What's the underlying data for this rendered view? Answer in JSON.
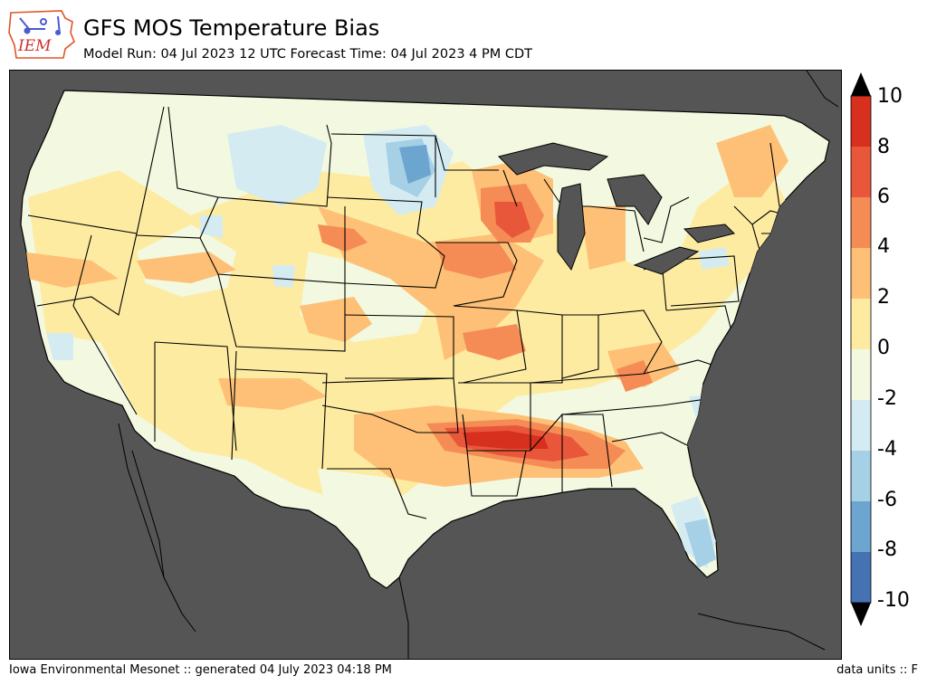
{
  "header": {
    "title": "GFS MOS Temperature Bias",
    "subtitle": "Model Run: 04 Jul 2023 12 UTC Forecast Time: 04 Jul 2023 4 PM CDT"
  },
  "logo": {
    "text": "IEM",
    "icon": "iem-logo-iowa-icon"
  },
  "legend": {
    "labels": [
      "10",
      "8",
      "6",
      "4",
      "2",
      "0",
      "-2",
      "-4",
      "-6",
      "-8",
      "-10"
    ],
    "colors": [
      "#d7301f",
      "#e9573b",
      "#f58c55",
      "#fdc076",
      "#feeba2",
      "#f2f9e0",
      "#d4ebf2",
      "#a5d0e5",
      "#6ca5d0",
      "#4472b3"
    ],
    "over_color": "#000000",
    "under_color": "#000000"
  },
  "map": {
    "land_base_color": "#f2f9e0",
    "ocean_color": "#555555",
    "regions": [
      {
        "name": "great-lakes-warm-wisconsin",
        "bias": 5
      },
      {
        "name": "north-dakota-cold-spot",
        "bias": -6
      },
      {
        "name": "montana-cool-area",
        "bias": -2
      },
      {
        "name": "arkansas-mississippi-hot-band",
        "bias": 8
      },
      {
        "name": "florida-cool-area",
        "bias": -4
      },
      {
        "name": "iowa-missouri-warm",
        "bias": 4
      }
    ]
  },
  "footer": {
    "left": "Iowa Environmental Mesonet :: generated 04 July 2023 04:18 PM",
    "right": "data units :: F"
  }
}
